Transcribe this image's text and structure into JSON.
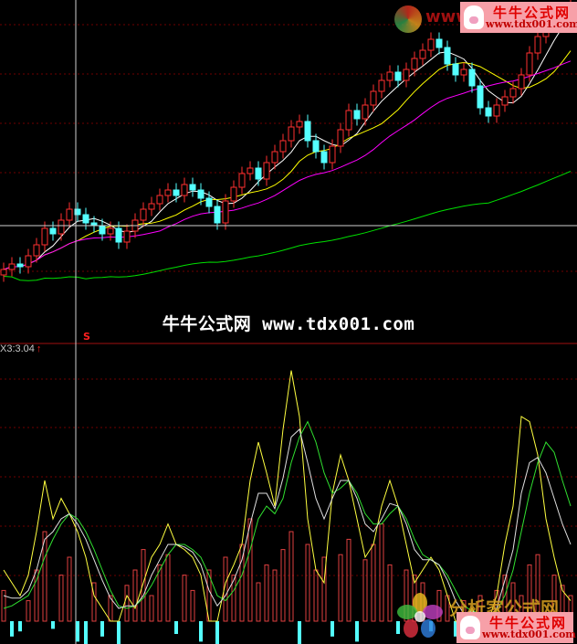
{
  "chart_data": {
    "type": "candlestick-with-indicator",
    "main_panel": {
      "close": [
        10.3,
        10.5,
        10.4,
        10.8,
        11.2,
        11.8,
        11.6,
        12.1,
        12.5,
        12.3,
        12.0,
        11.9,
        11.6,
        11.8,
        11.3,
        11.7,
        12.1,
        12.5,
        12.7,
        13.0,
        13.2,
        13.0,
        13.4,
        13.2,
        12.9,
        12.6,
        12.0,
        12.8,
        13.3,
        13.8,
        14.0,
        13.6,
        14.2,
        14.6,
        15.0,
        15.5,
        15.7,
        15.0,
        14.6,
        14.2,
        14.8,
        15.4,
        16.1,
        15.8,
        16.3,
        16.8,
        17.2,
        17.5,
        17.2,
        17.6,
        18.0,
        18.3,
        18.7,
        18.4,
        17.8,
        17.4,
        17.6,
        17.0,
        16.2,
        15.9,
        16.3,
        16.6,
        16.9,
        17.4,
        18.2,
        18.8,
        19.3,
        19.6,
        19.8,
        19.9
      ],
      "ma_periods": [
        5,
        10,
        20,
        60
      ],
      "ma_colors": [
        "#ffffff",
        "#ffff00",
        "#ff00ff",
        "#00e000"
      ],
      "up_color": "#ff3030",
      "down_color": "#54ffff",
      "crosshair_index": 9,
      "crosshair_price": 11.9,
      "marker": "S"
    },
    "indicator_panel": {
      "label": "X3:3.04",
      "arrow": "↑",
      "bars": [
        12,
        -6,
        -4,
        8,
        20,
        35,
        -3,
        18,
        25,
        -8,
        -10,
        15,
        -6,
        10,
        -12,
        14,
        20,
        28,
        10,
        22,
        26,
        -5,
        18,
        12,
        -8,
        20,
        -10,
        25,
        18,
        30,
        40,
        15,
        22,
        20,
        28,
        35,
        -10,
        30,
        20,
        25,
        -6,
        26,
        32,
        -8,
        24,
        30,
        38,
        22,
        -5,
        20,
        18,
        15,
        -4,
        12,
        10,
        -6,
        8,
        -5,
        10,
        -4,
        12,
        18,
        15,
        10,
        22,
        26,
        -6,
        18,
        14,
        10
      ],
      "lines": [
        {
          "color": "#ffff40",
          "values": [
            20,
            15,
            10,
            18,
            35,
            55,
            40,
            48,
            42,
            35,
            25,
            10,
            5,
            0,
            0,
            10,
            5,
            15,
            25,
            30,
            38,
            30,
            28,
            25,
            18,
            0,
            0,
            15,
            22,
            30,
            55,
            70,
            58,
            45,
            75,
            98,
            80,
            40,
            20,
            15,
            50,
            65,
            55,
            40,
            25,
            30,
            45,
            55,
            45,
            30,
            15,
            20,
            25,
            20,
            10,
            0,
            0,
            5,
            0,
            0,
            10,
            30,
            45,
            80,
            78,
            65,
            40,
            25,
            12,
            8
          ]
        },
        {
          "color": "#30e030",
          "values": [
            5,
            6,
            8,
            10,
            16,
            25,
            32,
            38,
            42,
            40,
            35,
            28,
            20,
            12,
            6,
            5,
            6,
            9,
            14,
            20,
            26,
            30,
            30,
            28,
            25,
            18,
            10,
            8,
            12,
            18,
            28,
            40,
            45,
            42,
            48,
            62,
            72,
            78,
            70,
            58,
            50,
            52,
            55,
            50,
            42,
            38,
            38,
            42,
            45,
            40,
            32,
            26,
            24,
            22,
            18,
            12,
            6,
            4,
            3,
            2,
            4,
            10,
            20,
            35,
            50,
            62,
            70,
            66,
            55,
            45
          ]
        },
        {
          "color": "#e0e0e0",
          "values": [
            10,
            9,
            9,
            12,
            20,
            32,
            35,
            40,
            42,
            38,
            32,
            24,
            16,
            9,
            5,
            6,
            6,
            10,
            18,
            24,
            30,
            30,
            29,
            27,
            22,
            12,
            6,
            10,
            16,
            24,
            38,
            50,
            50,
            44,
            56,
            72,
            75,
            62,
            48,
            40,
            48,
            55,
            55,
            48,
            38,
            35,
            40,
            46,
            45,
            38,
            28,
            24,
            24,
            22,
            16,
            8,
            3,
            4,
            2,
            1,
            5,
            16,
            28,
            50,
            62,
            64,
            58,
            48,
            38,
            30
          ]
        }
      ]
    }
  },
  "watermarks": {
    "center_text": "牛牛公式网 www.tdx001.com",
    "logo_title": "牛牛公式网",
    "logo_url": "www.tdx001.com",
    "top_partial": "www",
    "bottom_brand": "分析家公式网"
  }
}
